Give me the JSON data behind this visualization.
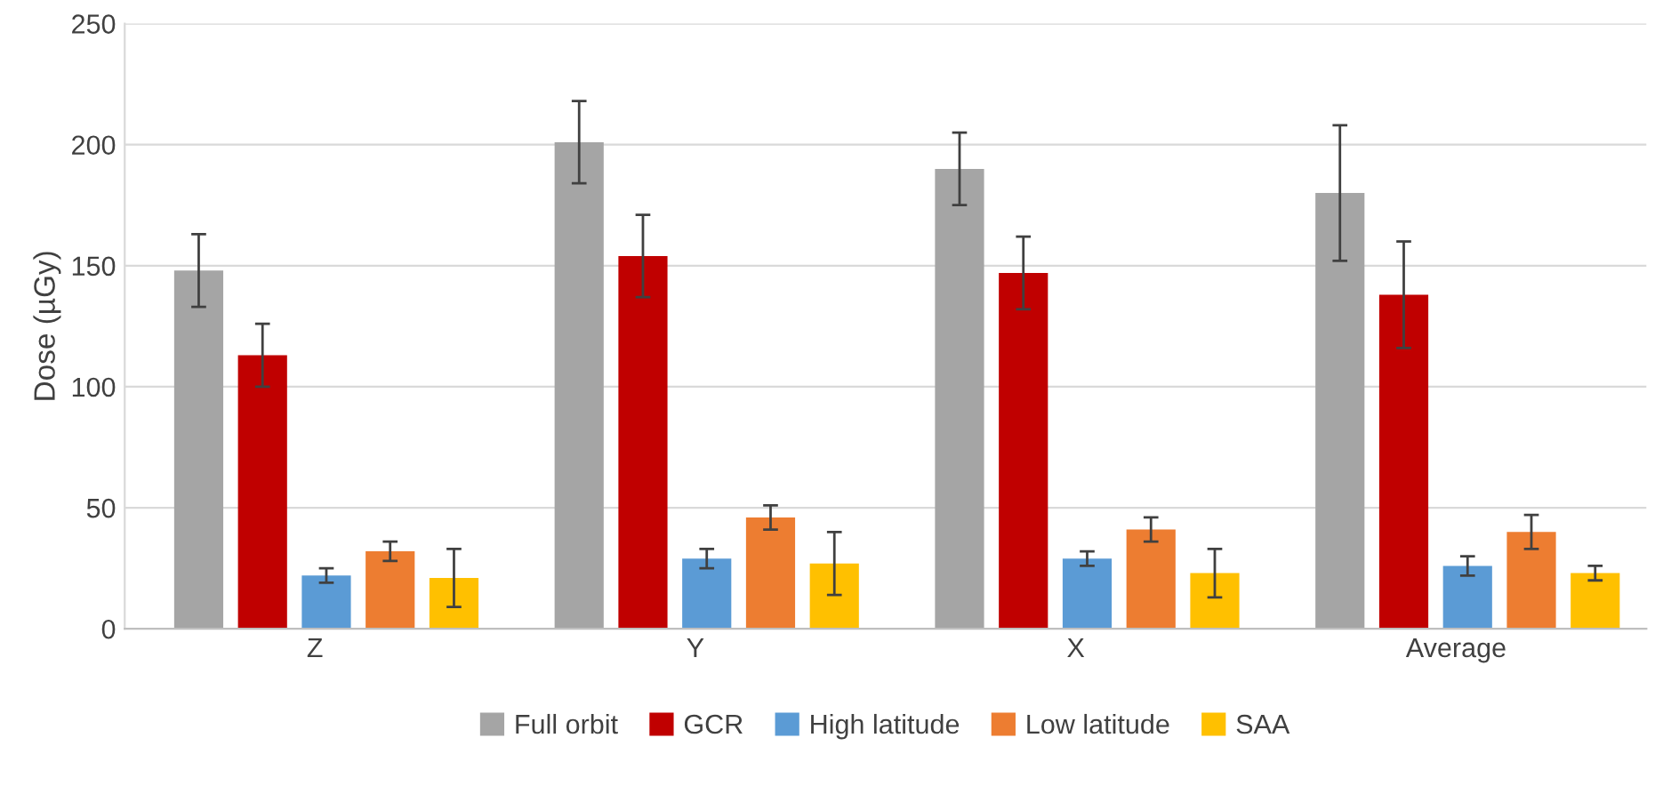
{
  "chart_data": {
    "type": "bar",
    "ylabel": "Dose (µGy)",
    "categories": [
      "Z",
      "Y",
      "X",
      "Average"
    ],
    "ylim": [
      0,
      250
    ],
    "yticks": [
      0,
      50,
      100,
      150,
      200,
      250
    ],
    "grid": "y",
    "legend": "bottom",
    "series": [
      {
        "name": "Full orbit",
        "color": "#a5a5a5",
        "values": [
          148,
          201,
          190,
          180
        ],
        "errors": [
          15,
          17,
          15,
          28
        ]
      },
      {
        "name": "GCR",
        "color": "#c00000",
        "values": [
          113,
          154,
          147,
          138
        ],
        "errors": [
          13,
          17,
          15,
          22
        ]
      },
      {
        "name": "High latitude",
        "color": "#5b9bd5",
        "values": [
          22,
          29,
          29,
          26
        ],
        "errors": [
          3,
          4,
          3,
          4
        ]
      },
      {
        "name": "Low latitude",
        "color": "#ed7d31",
        "values": [
          32,
          46,
          41,
          40
        ],
        "errors": [
          4,
          5,
          5,
          7
        ]
      },
      {
        "name": "SAA",
        "color": "#ffc000",
        "values": [
          21,
          27,
          23,
          23
        ],
        "errors": [
          12,
          13,
          10,
          3
        ]
      }
    ]
  }
}
